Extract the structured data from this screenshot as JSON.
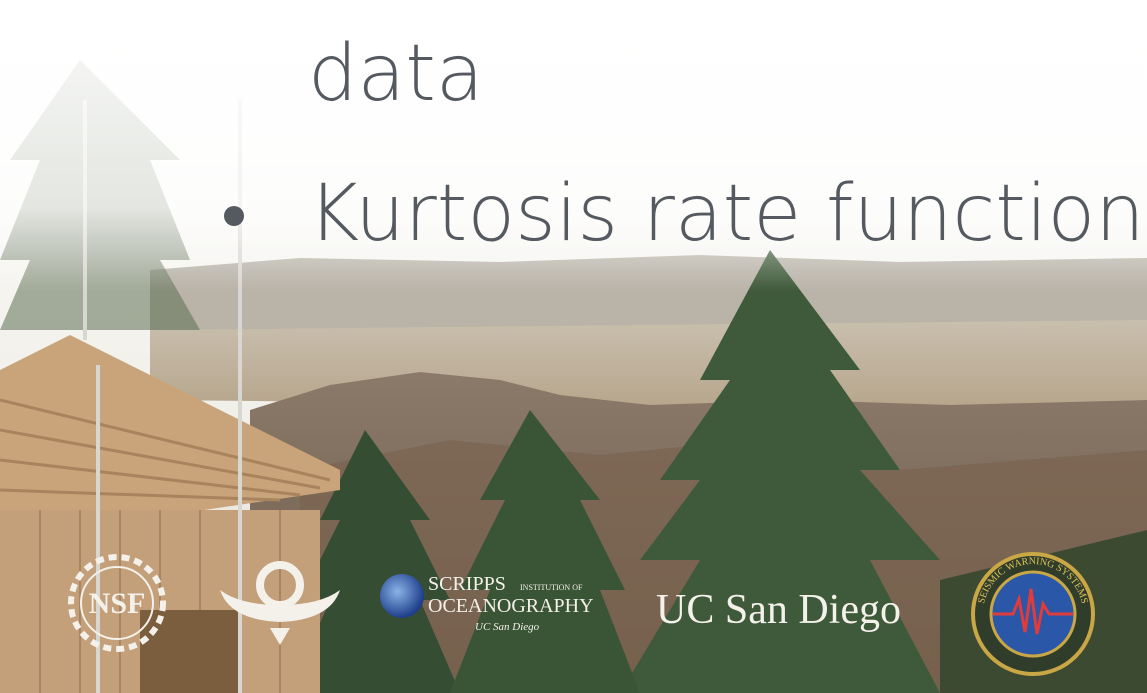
{
  "slide": {
    "lines": [
      {
        "text": "data",
        "bullet": false
      },
      {
        "text": "Kurtosis rate function",
        "bullet": true
      }
    ],
    "logos": {
      "nsf": "NSF",
      "scripps": [
        "SCRIPPS",
        "INSTITUTION OF",
        "OCEANOGRAPHY",
        "UC San Diego"
      ],
      "ucsd": "UC San Diego",
      "seismic": "SEISMIC WARNING SYSTEMS"
    }
  }
}
